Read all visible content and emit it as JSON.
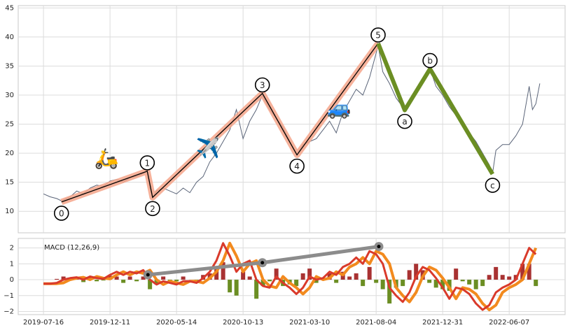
{
  "chart_data": [
    {
      "type": "line",
      "x": [
        0,
        10,
        20,
        27,
        40,
        50,
        60,
        70,
        80,
        90,
        100,
        110,
        120,
        130,
        140,
        150,
        156,
        160,
        164,
        170,
        180,
        190,
        200,
        210,
        220,
        230,
        240,
        250,
        260,
        270,
        280,
        290,
        295,
        300,
        310,
        320,
        329,
        340,
        350,
        360,
        370,
        381,
        390,
        400,
        410,
        420,
        430,
        440,
        450,
        460,
        470,
        480,
        490,
        503,
        510,
        520,
        530,
        543,
        550,
        560,
        570,
        581,
        590,
        600,
        610,
        620,
        630,
        640,
        650,
        660,
        670,
        675,
        680,
        690,
        700,
        710,
        720,
        730,
        735,
        740,
        746
      ],
      "values": [
        13.0,
        12.5,
        12.2,
        11.8,
        12.5,
        13.5,
        13.0,
        14.0,
        14.5,
        14.3,
        15.2,
        15.5,
        15.0,
        15.8,
        16.0,
        16.5,
        17.0,
        14.0,
        12.4,
        13.5,
        14.0,
        13.5,
        13.0,
        14.0,
        13.2,
        15.0,
        16.0,
        18.5,
        20.0,
        22.0,
        24.0,
        27.5,
        25.0,
        22.5,
        25.5,
        27.5,
        30.0,
        27.5,
        26.0,
        24.5,
        22.0,
        19.8,
        21.5,
        22.0,
        22.5,
        24.0,
        25.5,
        23.5,
        27.0,
        29.0,
        31.0,
        30.0,
        33.0,
        38.5,
        34.0,
        32.0,
        29.5,
        27.5,
        29.0,
        31.0,
        32.5,
        34.5,
        31.5,
        30.0,
        28.0,
        26.5,
        25.0,
        23.5,
        22.0,
        20.0,
        18.0,
        16.5,
        20.5,
        21.5,
        21.5,
        23.0,
        25.0,
        31.5,
        27.5,
        28.5,
        32.0
      ],
      "color": "#5a6478",
      "xlim": [
        -38,
        784
      ],
      "xticks": [
        {
          "value": 0,
          "label": "2019-07-16"
        },
        {
          "value": 100,
          "label": "2019-12-11"
        },
        {
          "value": 200,
          "label": "2020-05-14"
        },
        {
          "value": 300,
          "label": "2020-10-13"
        },
        {
          "value": 400,
          "label": "2021-03-10"
        },
        {
          "value": 500,
          "label": "2021-08-04"
        },
        {
          "value": 600,
          "label": "2021-12-31"
        },
        {
          "value": 700,
          "label": "2022-06-07"
        }
      ],
      "ylim": [
        6.3,
        45.4
      ],
      "yticks": [
        10,
        15,
        20,
        25,
        30,
        35,
        40,
        45
      ],
      "grid": true,
      "impulse": {
        "x": [
          27,
          156,
          164,
          329,
          381,
          503
        ],
        "values": [
          11.6,
          16.9,
          12.4,
          30.3,
          19.7,
          38.9
        ],
        "labels": [
          "0",
          "1",
          "2",
          "3",
          "4",
          "5"
        ],
        "color": "#f4a58a",
        "line_color": "#000000"
      },
      "correction": {
        "x": [
          543,
          581,
          675
        ],
        "values": [
          27.4,
          34.5,
          16.4
        ],
        "labels": [
          "a",
          "b",
          "c"
        ],
        "color": "#6b8e23"
      },
      "icons": [
        "🛵",
        "✈️",
        "🚙"
      ]
    },
    {
      "type": "macd",
      "label": "MACD (12,26,9)",
      "x": [
        0,
        10,
        20,
        30,
        40,
        50,
        60,
        70,
        80,
        90,
        100,
        110,
        120,
        130,
        140,
        150,
        160,
        170,
        180,
        190,
        200,
        210,
        220,
        230,
        240,
        250,
        260,
        270,
        280,
        290,
        300,
        310,
        320,
        330,
        340,
        350,
        360,
        370,
        380,
        390,
        400,
        410,
        420,
        430,
        440,
        450,
        460,
        470,
        480,
        490,
        500,
        510,
        520,
        530,
        540,
        550,
        560,
        570,
        580,
        590,
        600,
        610,
        620,
        630,
        640,
        650,
        660,
        670,
        680,
        690,
        700,
        710,
        720,
        730,
        740
      ],
      "macd": [
        -0.25,
        -0.25,
        -0.2,
        0.0,
        0.1,
        0.15,
        0.0,
        0.2,
        0.1,
        0.05,
        0.3,
        0.5,
        0.3,
        0.5,
        0.4,
        0.6,
        0.0,
        -0.3,
        -0.1,
        -0.2,
        -0.3,
        -0.1,
        -0.1,
        -0.2,
        0.1,
        0.5,
        1.2,
        2.3,
        1.5,
        0.5,
        1.0,
        1.2,
        0.0,
        -0.4,
        -0.5,
        0.2,
        -0.2,
        -0.5,
        -0.9,
        -0.5,
        0.2,
        0.0,
        0.1,
        0.5,
        0.3,
        0.8,
        1.0,
        1.4,
        1.0,
        1.8,
        1.6,
        1.0,
        -0.5,
        -1.0,
        -1.4,
        -0.8,
        0.2,
        0.8,
        0.6,
        0.1,
        -0.5,
        -1.2,
        -0.5,
        -0.6,
        -0.9,
        -1.5,
        -1.9,
        -1.6,
        -0.8,
        -0.5,
        -0.3,
        0.0,
        1.0,
        2.0,
        1.6
      ],
      "signal": [
        -0.25,
        -0.25,
        -0.25,
        -0.2,
        0.0,
        0.1,
        0.15,
        0.0,
        0.2,
        0.1,
        0.05,
        0.3,
        0.5,
        0.3,
        0.5,
        0.4,
        0.6,
        0.0,
        -0.3,
        -0.1,
        -0.2,
        -0.3,
        -0.1,
        -0.1,
        -0.2,
        0.1,
        0.5,
        1.2,
        2.3,
        1.5,
        0.5,
        1.0,
        1.2,
        0.0,
        -0.4,
        -0.5,
        0.2,
        -0.2,
        -0.5,
        -0.9,
        -0.5,
        0.2,
        0.0,
        0.1,
        0.5,
        0.3,
        0.8,
        1.0,
        1.4,
        1.0,
        1.8,
        1.6,
        1.0,
        -0.5,
        -1.0,
        -1.4,
        -0.8,
        0.2,
        0.8,
        0.6,
        0.1,
        -0.5,
        -1.2,
        -0.5,
        -0.6,
        -0.9,
        -1.5,
        -1.9,
        -1.6,
        -0.8,
        -0.5,
        -0.3,
        0.0,
        1.0,
        2.0
      ],
      "histogram": [
        0,
        0,
        0.05,
        0.2,
        0.1,
        0.05,
        -0.15,
        0.2,
        -0.1,
        -0.05,
        0.25,
        0.2,
        -0.2,
        0.2,
        -0.1,
        0.2,
        -0.6,
        -0.3,
        0.2,
        -0.1,
        -0.1,
        0.2,
        0,
        -0.1,
        0.3,
        0.4,
        0.7,
        1.1,
        -0.8,
        -1.0,
        0.5,
        0.2,
        -1.2,
        -0.4,
        -0.1,
        0.7,
        -0.4,
        -0.3,
        -0.4,
        0.4,
        0.7,
        -0.2,
        0.1,
        0.4,
        -0.2,
        0.5,
        0.2,
        0.4,
        -0.4,
        0.8,
        -0.2,
        -0.6,
        -1.5,
        -0.5,
        -0.4,
        0.6,
        1.0,
        0.6,
        -0.2,
        -0.5,
        -0.6,
        -0.7,
        0.7,
        -0.1,
        -0.3,
        -0.6,
        -0.4,
        0.3,
        0.8,
        0.3,
        0.2,
        0.3,
        1.0,
        1.0,
        -0.4
      ],
      "macd_color": "#d93a2b",
      "signal_color": "#f28a1e",
      "hist_colors": [
        "#a83232",
        "#6b8e23"
      ],
      "trend": {
        "x": [
          157,
          329,
          504
        ],
        "values": [
          0.31,
          1.07,
          2.09
        ],
        "color": "#8c8c8c"
      },
      "xlim": [
        -38,
        784
      ],
      "xticks": [
        {
          "value": 0,
          "label": "2019-07-16"
        },
        {
          "value": 100,
          "label": "2019-12-11"
        },
        {
          "value": 200,
          "label": "2020-05-14"
        },
        {
          "value": 300,
          "label": "2020-10-13"
        },
        {
          "value": 400,
          "label": "2021-03-10"
        },
        {
          "value": 500,
          "label": "2021-08-04"
        },
        {
          "value": 600,
          "label": "2021-12-31"
        },
        {
          "value": 700,
          "label": "2022-06-07"
        }
      ],
      "ylim": [
        -2.2,
        2.6
      ],
      "yticks": [
        {
          "value": -2,
          "label": "−2"
        },
        {
          "value": -1,
          "label": "−1"
        },
        0,
        1,
        2
      ],
      "grid": true
    }
  ]
}
